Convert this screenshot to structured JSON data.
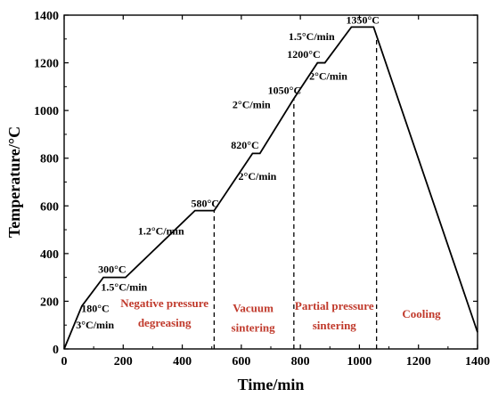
{
  "chart_data": {
    "type": "line",
    "xlabel": "Time/min",
    "ylabel": "Temperature/°C",
    "xlim": [
      0,
      1400
    ],
    "ylim": [
      0,
      1400
    ],
    "xticks": [
      "0",
      "200",
      "400",
      "600",
      "800",
      "1000",
      "1200",
      "1400"
    ],
    "yticks": [
      "0",
      "200",
      "400",
      "600",
      "800",
      "1000",
      "1200",
      "1400"
    ],
    "grid": false,
    "line_color": "#000000",
    "series": [
      {
        "x": [
          0,
          60,
          133,
          208,
          443,
          508,
          638,
          663,
          778,
          858,
          883,
          973,
          1048,
          1400
        ],
        "y": [
          0,
          180,
          300,
          300,
          580,
          580,
          820,
          820,
          1050,
          1200,
          1200,
          1350,
          1350,
          70
        ]
      }
    ],
    "dashed_lines_x": [
      508,
      778,
      1058
    ],
    "annotations": [
      {
        "text": "180°C",
        "x": 58,
        "y": 155
      },
      {
        "text": "3°C/min",
        "x": 40,
        "y": 85
      },
      {
        "text": "300°C",
        "x": 115,
        "y": 320
      },
      {
        "text": "1.5°C/min",
        "x": 125,
        "y": 245
      },
      {
        "text": "1.2°C/min",
        "x": 250,
        "y": 480
      },
      {
        "text": "580°C",
        "x": 430,
        "y": 595
      },
      {
        "text": "820°C",
        "x": 565,
        "y": 840
      },
      {
        "text": "2°C/min",
        "x": 590,
        "y": 710
      },
      {
        "text": "2°C/min",
        "x": 570,
        "y": 1010
      },
      {
        "text": "1050°C",
        "x": 690,
        "y": 1070
      },
      {
        "text": "1200°C",
        "x": 755,
        "y": 1220
      },
      {
        "text": "2°C/min",
        "x": 830,
        "y": 1130
      },
      {
        "text": "1.5°C/min",
        "x": 760,
        "y": 1295
      },
      {
        "text": "1350°C",
        "x": 955,
        "y": 1365
      }
    ],
    "stage_labels": [
      {
        "lines": [
          "Negative pressure",
          "degreasing"
        ],
        "x": 340,
        "y_top": 175
      },
      {
        "lines": [
          "Vacuum",
          "sintering"
        ],
        "x": 640,
        "y_top": 155
      },
      {
        "lines": [
          "Partial pressure",
          "sintering"
        ],
        "x": 915,
        "y_top": 165
      },
      {
        "lines": [
          "Cooling"
        ],
        "x": 1210,
        "y_top": 130
      }
    ],
    "stage_label_color": "#c0392b"
  }
}
